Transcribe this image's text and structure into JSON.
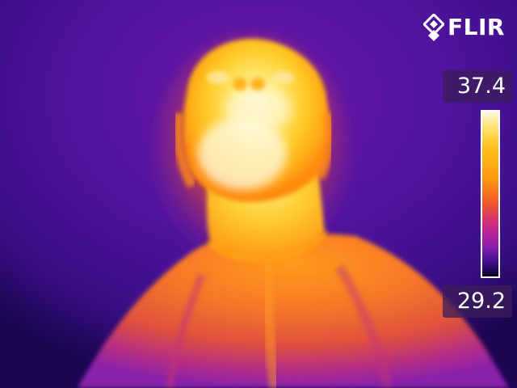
{
  "brand": {
    "logo_text": "FLIR"
  },
  "scale": {
    "max_temp": "37.4",
    "min_temp": "29.2",
    "palette": "iron",
    "colors": {
      "hot": "#fbf6e8",
      "warm": "#ffc21a",
      "mid": "#f05a28",
      "cool": "#8a1fb0",
      "cold": "#0a0228"
    }
  },
  "scene": {
    "background_color": "#4b12a0",
    "shirt_color": "#f06a2a",
    "face_color": "#ffd23a"
  }
}
